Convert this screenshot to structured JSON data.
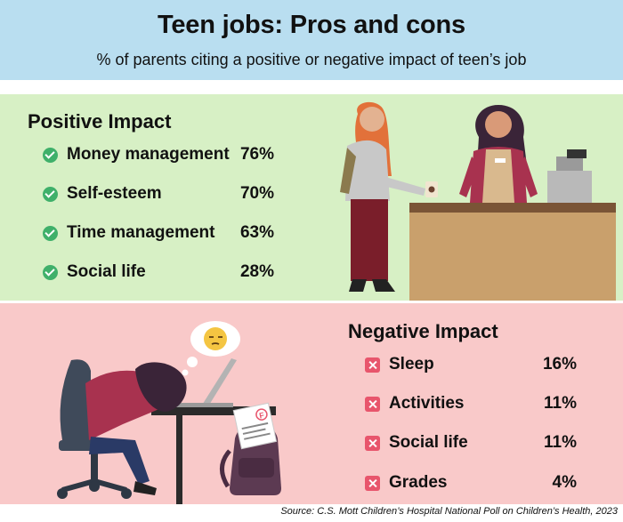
{
  "header": {
    "title": "Teen jobs: Pros and cons",
    "subtitle": "% of parents citing a positive or negative impact of teen’s job"
  },
  "chart_data": {
    "type": "table",
    "title": "Teen jobs: Pros and cons",
    "subtitle": "% of parents citing a positive or negative impact of teen’s job",
    "groups": [
      {
        "name": "Positive Impact",
        "icon": "check-icon",
        "color": "#3fb06a",
        "categories": [
          "Money management",
          "Self-esteem",
          "Time management",
          "Social life"
        ],
        "values": [
          76,
          70,
          63,
          28
        ],
        "labels": [
          "76%",
          "70%",
          "63%",
          "28%"
        ]
      },
      {
        "name": "Negative Impact",
        "icon": "x-icon",
        "color": "#e8556c",
        "categories": [
          "Sleep",
          "Activities",
          "Social life",
          "Grades"
        ],
        "values": [
          16,
          11,
          11,
          4
        ],
        "labels": [
          "16%",
          "11%",
          "11%",
          "4%"
        ]
      }
    ],
    "source": "Source: C.S. Mott Children’s Hospital National Poll on Children’s Health, 2023"
  },
  "colors": {
    "header_bg": "#b9def0",
    "positive_bg": "#d7f0c5",
    "negative_bg": "#f9c9c9"
  },
  "illustrations": {
    "coffee_shop": "teen-barista-illustration",
    "tired_student": "sleeping-student-illustration",
    "thought_bubble_icon": "sleepy-face-icon",
    "graded_paper_grade": "F"
  }
}
